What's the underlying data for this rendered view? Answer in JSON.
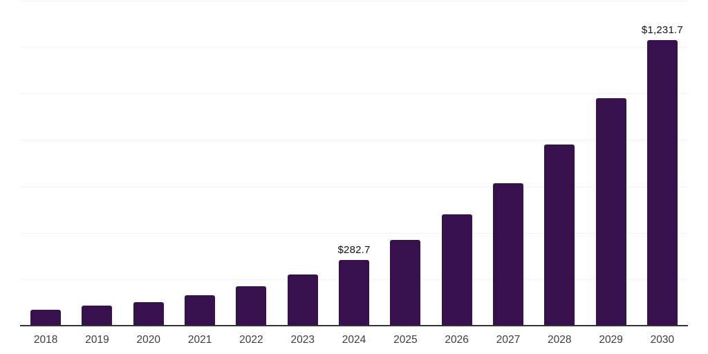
{
  "chart_data": {
    "type": "bar",
    "title": "",
    "xlabel": "",
    "ylabel": "",
    "categories": [
      "2018",
      "2019",
      "2020",
      "2021",
      "2022",
      "2023",
      "2024",
      "2025",
      "2026",
      "2027",
      "2028",
      "2029",
      "2030"
    ],
    "values": [
      68,
      85,
      100,
      130,
      170,
      220,
      282.7,
      369,
      479,
      613,
      780,
      980,
      1231.7
    ],
    "value_labels": [
      "",
      "",
      "",
      "",
      "",
      "",
      "$282.7",
      "",
      "",
      "",
      "",
      "",
      "$1,231.7"
    ],
    "ylim": [
      0,
      1400
    ],
    "gridline_step": 200,
    "grid": true,
    "legend": false,
    "colors": {
      "bar": "#36114E",
      "gridline": "#f2f2f2",
      "axis": "#333333",
      "tick_label": "#3d3d3d",
      "value_label": "#111111"
    }
  }
}
